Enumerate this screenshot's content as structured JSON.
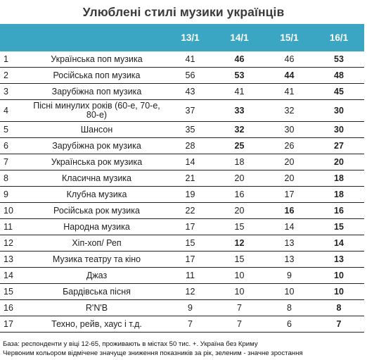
{
  "title": "Улюблені стилі музики українців",
  "columns": [
    "13/1",
    "14/1",
    "15/1",
    "16/1"
  ],
  "rows": [
    {
      "n": "1",
      "name": "Українська поп музика",
      "v": [
        "41",
        "46",
        "46",
        "53"
      ],
      "s": [
        "",
        "green",
        "",
        "green"
      ]
    },
    {
      "n": "2",
      "name": "Російська поп музика",
      "v": [
        "56",
        "53",
        "44",
        "48"
      ],
      "s": [
        "",
        "red",
        "red",
        "green"
      ]
    },
    {
      "n": "3",
      "name": "Зарубіжна поп музика",
      "v": [
        "43",
        "41",
        "41",
        "45"
      ],
      "s": [
        "",
        "",
        "",
        "green"
      ]
    },
    {
      "n": "4",
      "name": "Пісні минулих років (60-е, 70-е, 80-е)",
      "v": [
        "37",
        "33",
        "32",
        "30"
      ],
      "s": [
        "",
        "red",
        "",
        ""
      ]
    },
    {
      "n": "5",
      "name": "Шансон",
      "v": [
        "35",
        "32",
        "30",
        "30"
      ],
      "s": [
        "",
        "red",
        "",
        ""
      ]
    },
    {
      "n": "6",
      "name": "Зарубіжна рок музика",
      "v": [
        "28",
        "25",
        "26",
        "27"
      ],
      "s": [
        "",
        "red",
        "",
        ""
      ]
    },
    {
      "n": "7",
      "name": "Українська рок музика",
      "v": [
        "14",
        "18",
        "20",
        "20"
      ],
      "s": [
        "",
        "",
        "",
        ""
      ]
    },
    {
      "n": "8",
      "name": "Класична музика",
      "v": [
        "21",
        "20",
        "20",
        "18"
      ],
      "s": [
        "",
        "",
        "",
        ""
      ]
    },
    {
      "n": "9",
      "name": "Клубна музика",
      "v": [
        "19",
        "16",
        "17",
        "18"
      ],
      "s": [
        "",
        "",
        "",
        ""
      ]
    },
    {
      "n": "10",
      "name": "Російська рок музика",
      "v": [
        "22",
        "20",
        "16",
        "16"
      ],
      "s": [
        "",
        "",
        "red",
        ""
      ]
    },
    {
      "n": "11",
      "name": "Народна музика",
      "v": [
        "17",
        "15",
        "14",
        "15"
      ],
      "s": [
        "",
        "",
        "",
        ""
      ]
    },
    {
      "n": "12",
      "name": "Хіп-хоп/ Реп",
      "v": [
        "15",
        "12",
        "13",
        "14"
      ],
      "s": [
        "",
        "red",
        "",
        ""
      ]
    },
    {
      "n": "13",
      "name": "Музика театру та кіно",
      "v": [
        "17",
        "15",
        "13",
        "13"
      ],
      "s": [
        "",
        "",
        "",
        ""
      ]
    },
    {
      "n": "14",
      "name": "Джаз",
      "v": [
        "11",
        "10",
        "9",
        "10"
      ],
      "s": [
        "",
        "",
        "",
        ""
      ]
    },
    {
      "n": "15",
      "name": "Бардівська пісня",
      "v": [
        "12",
        "10",
        "10",
        "10"
      ],
      "s": [
        "",
        "",
        "",
        ""
      ]
    },
    {
      "n": "16",
      "name": "R'N'B",
      "v": [
        "9",
        "7",
        "8",
        "8"
      ],
      "s": [
        "",
        "",
        "",
        ""
      ]
    },
    {
      "n": "17",
      "name": "Техно, рейв, хаус і т.д.",
      "v": [
        "7",
        "7",
        "6",
        "7"
      ],
      "s": [
        "",
        "",
        "",
        ""
      ]
    }
  ],
  "notes": {
    "line1": "База: респонденти у віці 12-65, проживають в містах 50 тис. +. Україна без Криму",
    "line2": "Червоним кольором відмічене значуще зниження показників за рік, зеленим - значне зростання"
  },
  "colors": {
    "header": "#3ba6c4",
    "decrease": "#c0122a",
    "increase": "#2e9a3e"
  }
}
